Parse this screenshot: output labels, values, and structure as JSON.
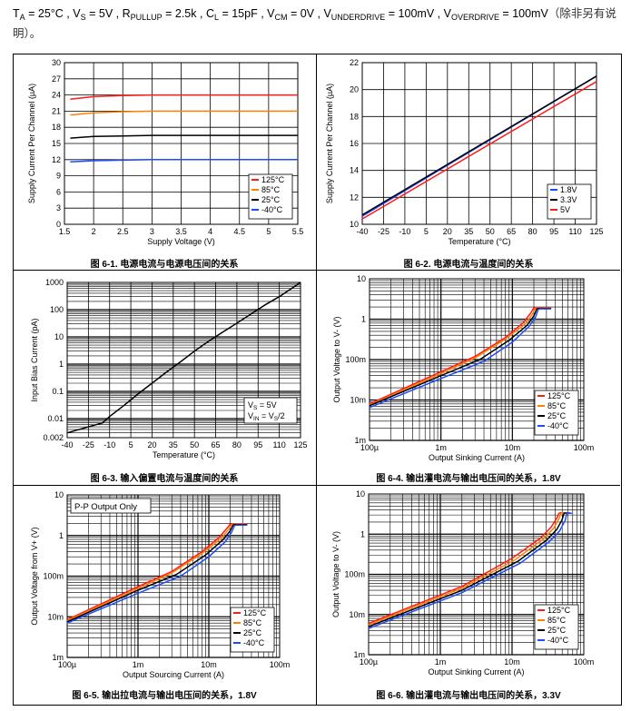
{
  "header": {
    "ta_label": "T",
    "ta_sub": "A",
    "ta_val": " = 25°C , ",
    "vs_label": "V",
    "vs_sub": "S",
    "vs_val": " = 5V , ",
    "r_label": "R",
    "r_sub": "PULLUP",
    "r_val": " = 2.5k , ",
    "cl_label": "C",
    "cl_sub": "L",
    "cl_val": " = 15pF , ",
    "vcm_label": "V",
    "vcm_sub": "CM",
    "vcm_val": " = 0V , ",
    "vu_label": "V",
    "vu_sub": "UNDERDRIVE",
    "vu_val": " = 100mV , ",
    "vo_label": "V",
    "vo_sub": "OVERDRIVE",
    "vo_val": " = 100mV",
    "note_a": "（除非另有说",
    "note_b": "明）。"
  },
  "colors": {
    "c125": "#ff1a1a",
    "c85": "#ff8000",
    "c25": "#000000",
    "cm40": "#1a4cff"
  },
  "chart_data": [
    {
      "id": "fig1",
      "type": "line",
      "caption": "图 6-1. 电源电流与电源电压间的关系",
      "xlabel": "Supply Voltage (V)",
      "ylabel": "Supply Current Per Channel (µA)",
      "xlim": [
        1.5,
        5.5
      ],
      "ylim": [
        0,
        30
      ],
      "xticks": [
        "1.5",
        "2",
        "2.5",
        "3",
        "3.5",
        "4",
        "4.5",
        "5",
        "5.5"
      ],
      "yticks": [
        "0",
        "3",
        "6",
        "9",
        "12",
        "15",
        "18",
        "21",
        "24",
        "27",
        "30"
      ],
      "legend": [
        "125°C",
        "85°C",
        "25°C",
        "-40°C"
      ],
      "series": [
        {
          "name": "125°C",
          "color": "#ff1a1a",
          "x": [
            1.6,
            2,
            2.5,
            3,
            5.5
          ],
          "y": [
            23.2,
            23.7,
            23.9,
            24.0,
            24.0
          ]
        },
        {
          "name": "85°C",
          "color": "#ff8000",
          "x": [
            1.6,
            2,
            2.5,
            3,
            5.5
          ],
          "y": [
            20.3,
            20.7,
            20.9,
            21.0,
            21.0
          ]
        },
        {
          "name": "25°C",
          "color": "#000000",
          "x": [
            1.6,
            2,
            2.5,
            3,
            5.5
          ],
          "y": [
            16.0,
            16.3,
            16.4,
            16.5,
            16.5
          ]
        },
        {
          "name": "-40°C",
          "color": "#1a4cff",
          "x": [
            1.6,
            2,
            2.5,
            3,
            5.5
          ],
          "y": [
            11.6,
            11.8,
            11.9,
            12.0,
            12.0
          ]
        }
      ]
    },
    {
      "id": "fig2",
      "type": "line",
      "caption": "图 6-2. 电源电流与温度间的关系",
      "xlabel": "Temperature (°C)",
      "ylabel": "Supply Current Per Channel (µA)",
      "xlim": [
        -40,
        125
      ],
      "ylim": [
        10,
        22
      ],
      "xticks": [
        "-40",
        "-25",
        "-10",
        "5",
        "20",
        "35",
        "50",
        "65",
        "80",
        "95",
        "110",
        "125"
      ],
      "yticks": [
        "10",
        "12",
        "14",
        "16",
        "18",
        "20",
        "22"
      ],
      "legend": [
        "1.8V",
        "3.3V",
        "5V"
      ],
      "series": [
        {
          "name": "1.8V",
          "color": "#1a4cff",
          "x": [
            -40,
            125
          ],
          "y": [
            10.6,
            21.0
          ]
        },
        {
          "name": "3.3V",
          "color": "#000000",
          "x": [
            -40,
            125
          ],
          "y": [
            10.7,
            21.0
          ]
        },
        {
          "name": "5V",
          "color": "#ff1a1a",
          "x": [
            -40,
            125
          ],
          "y": [
            10.4,
            20.6
          ]
        }
      ]
    },
    {
      "id": "fig3",
      "type": "line",
      "caption": "图 6-3. 输入偏置电流与温度间的关系",
      "xlabel": "Temperature (°C)",
      "ylabel": "Input Bias Current (pA)",
      "xlim": [
        -40,
        125
      ],
      "ylim": [
        0.002,
        1000
      ],
      "yscale": "log",
      "xticks": [
        "-40",
        "-25",
        "-10",
        "5",
        "20",
        "35",
        "50",
        "65",
        "80",
        "95",
        "110",
        "125"
      ],
      "yticks": [
        "0.002",
        "0.01",
        "0.1",
        "1",
        "10",
        "100",
        "1000"
      ],
      "annotation_a": "V",
      "annotation_a_sub": "S",
      "annotation_a_val": " = 5V",
      "annotation_b": "V",
      "annotation_b_sub": "IN",
      "annotation_b_val": " = V",
      "annotation_b_sub2": "S",
      "annotation_b_tail": "/2",
      "series": [
        {
          "name": "bias",
          "color": "#000000",
          "x": [
            -40,
            -15,
            -10,
            0,
            10,
            20,
            30,
            40,
            50,
            60,
            70,
            80,
            90,
            100,
            110,
            125
          ],
          "y": [
            0.003,
            0.007,
            0.012,
            0.03,
            0.08,
            0.2,
            0.5,
            1.2,
            3,
            7,
            15,
            32,
            70,
            150,
            300,
            1000
          ]
        }
      ]
    },
    {
      "id": "fig4",
      "type": "line",
      "caption": "图 6-4. 输出灌电流与输出电压间的关系，1.8V",
      "xlabel": "Output Sinking Current (A)",
      "ylabel": "Output Voltage to V- (V)",
      "xlim": [
        0.0001,
        0.1
      ],
      "ylim": [
        0.001,
        10
      ],
      "xscale": "log",
      "yscale": "log",
      "xticks": [
        "100µ",
        "1m",
        "10m",
        "100m"
      ],
      "yticks": [
        "1m",
        "10m",
        "100m",
        "1",
        "10"
      ],
      "legend": [
        "125°C",
        "85°C",
        "25°C",
        "-40°C"
      ],
      "series": [
        {
          "name": "125°C",
          "color": "#ff1a1a",
          "x": [
            0.0001,
            0.001,
            0.003,
            0.008,
            0.014,
            0.018,
            0.02,
            0.021,
            0.025,
            0.035
          ],
          "y": [
            0.008,
            0.05,
            0.12,
            0.35,
            0.8,
            1.4,
            1.9,
            1.95,
            1.95,
            1.95
          ]
        },
        {
          "name": "85°C",
          "color": "#ff8000",
          "x": [
            0.0001,
            0.001,
            0.003,
            0.008,
            0.015,
            0.019,
            0.021,
            0.022,
            0.026,
            0.035
          ],
          "y": [
            0.0075,
            0.045,
            0.11,
            0.32,
            0.75,
            1.3,
            1.85,
            1.9,
            1.9,
            1.9
          ]
        },
        {
          "name": "25°C",
          "color": "#000000",
          "x": [
            0.0001,
            0.001,
            0.0035,
            0.009,
            0.016,
            0.02,
            0.022,
            0.023,
            0.027,
            0.035
          ],
          "y": [
            0.0072,
            0.04,
            0.1,
            0.3,
            0.7,
            1.2,
            1.8,
            1.85,
            1.85,
            1.85
          ]
        },
        {
          "name": "-40°C",
          "color": "#1a4cff",
          "x": [
            0.0001,
            0.001,
            0.004,
            0.01,
            0.017,
            0.021,
            0.023,
            0.024,
            0.028,
            0.035
          ],
          "y": [
            0.0065,
            0.034,
            0.09,
            0.27,
            0.65,
            1.1,
            1.75,
            1.8,
            1.8,
            1.8
          ]
        }
      ]
    },
    {
      "id": "fig5",
      "type": "line",
      "caption": "图 6-5. 输出拉电流与输出电压间的关系，1.8V",
      "xlabel": "Output Sourcing Current (A)",
      "ylabel": "Output Voltage from V+ (V)",
      "xlim": [
        0.0001,
        0.1
      ],
      "ylim": [
        0.001,
        10
      ],
      "xscale": "log",
      "yscale": "log",
      "xticks": [
        "100µ",
        "1m",
        "10m",
        "100m"
      ],
      "yticks": [
        "1m",
        "10m",
        "100m",
        "1",
        "10"
      ],
      "note": "P-P Output Only",
      "legend": [
        "125°C",
        "85°C",
        "25°C",
        "-40°C"
      ],
      "series": [
        {
          "name": "125°C",
          "color": "#ff1a1a",
          "x": [
            0.0001,
            0.001,
            0.003,
            0.008,
            0.014,
            0.018,
            0.02,
            0.021,
            0.025,
            0.035
          ],
          "y": [
            0.0085,
            0.055,
            0.13,
            0.4,
            0.9,
            1.5,
            1.9,
            1.95,
            1.95,
            1.95
          ]
        },
        {
          "name": "85°C",
          "color": "#ff8000",
          "x": [
            0.0001,
            0.001,
            0.003,
            0.008,
            0.015,
            0.019,
            0.021,
            0.022,
            0.026,
            0.035
          ],
          "y": [
            0.008,
            0.05,
            0.12,
            0.36,
            0.85,
            1.4,
            1.85,
            1.9,
            1.9,
            1.9
          ]
        },
        {
          "name": "25°C",
          "color": "#000000",
          "x": [
            0.0001,
            0.001,
            0.0035,
            0.009,
            0.016,
            0.02,
            0.022,
            0.023,
            0.027,
            0.035
          ],
          "y": [
            0.0075,
            0.045,
            0.11,
            0.33,
            0.8,
            1.3,
            1.8,
            1.85,
            1.85,
            1.85
          ]
        },
        {
          "name": "-40°C",
          "color": "#1a4cff",
          "x": [
            0.0001,
            0.001,
            0.004,
            0.01,
            0.017,
            0.021,
            0.023,
            0.024,
            0.028,
            0.035
          ],
          "y": [
            0.007,
            0.038,
            0.1,
            0.3,
            0.7,
            1.2,
            1.75,
            1.8,
            1.8,
            1.8
          ]
        }
      ]
    },
    {
      "id": "fig6",
      "type": "line",
      "caption": "图 6-6. 输出灌电流与输出电压间的关系，3.3V",
      "xlabel": "Output Sinking Current (A)",
      "ylabel": "Output Voltage to V- (V)",
      "xlim": [
        0.0001,
        0.1
      ],
      "ylim": [
        0.001,
        10
      ],
      "xscale": "log",
      "yscale": "log",
      "xticks": [
        "100µ",
        "1m",
        "10m",
        "100m"
      ],
      "yticks": [
        "1m",
        "10m",
        "100m",
        "1",
        "10"
      ],
      "legend": [
        "125°C",
        "85°C",
        "25°C",
        "-40°C"
      ],
      "series": [
        {
          "name": "125°C",
          "color": "#ff1a1a",
          "x": [
            0.0001,
            0.002,
            0.01,
            0.025,
            0.035,
            0.042,
            0.045,
            0.047,
            0.05,
            0.06
          ],
          "y": [
            0.006,
            0.05,
            0.25,
            0.8,
            1.5,
            2.5,
            3.3,
            3.4,
            3.4,
            3.4
          ]
        },
        {
          "name": "85°C",
          "color": "#ff8000",
          "x": [
            0.0001,
            0.002,
            0.011,
            0.027,
            0.038,
            0.045,
            0.048,
            0.05,
            0.053,
            0.062
          ],
          "y": [
            0.0055,
            0.045,
            0.23,
            0.75,
            1.4,
            2.4,
            3.3,
            3.4,
            3.4,
            3.4
          ]
        },
        {
          "name": "25°C",
          "color": "#000000",
          "x": [
            0.0001,
            0.002,
            0.012,
            0.03,
            0.042,
            0.05,
            0.053,
            0.055,
            0.058,
            0.065
          ],
          "y": [
            0.005,
            0.04,
            0.21,
            0.7,
            1.3,
            2.3,
            3.3,
            3.35,
            3.35,
            3.35
          ]
        },
        {
          "name": "-40°C",
          "color": "#1a4cff",
          "x": [
            0.0001,
            0.002,
            0.013,
            0.033,
            0.046,
            0.055,
            0.058,
            0.06,
            0.063,
            0.068
          ],
          "y": [
            0.0045,
            0.035,
            0.19,
            0.65,
            1.2,
            2.2,
            3.3,
            3.3,
            3.3,
            3.3
          ]
        }
      ]
    }
  ]
}
